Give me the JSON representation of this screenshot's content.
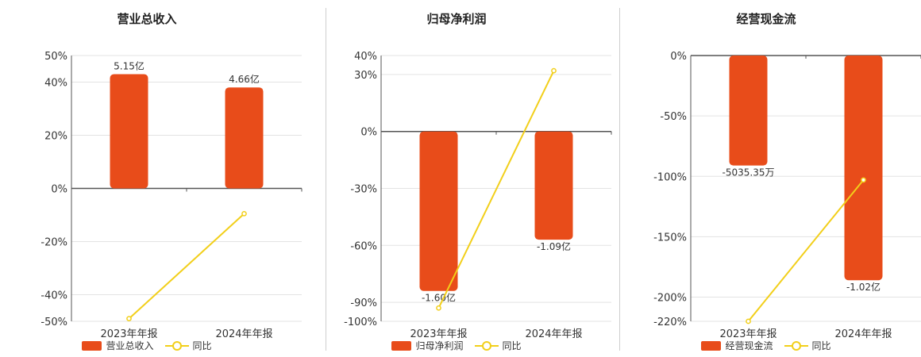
{
  "colors": {
    "bar": "#e84c1a",
    "line": "#f2cf1a",
    "grid": "#e3e3e3",
    "axis": "#555555"
  },
  "chart_data": [
    {
      "type": "bar",
      "title": "营业总收入",
      "categories": [
        "2023年年报",
        "2024年年报"
      ],
      "series": [
        {
          "name": "营业总收入",
          "type": "bar",
          "values": [
            0.43,
            0.38
          ],
          "value_labels": [
            "5.15亿",
            "4.66亿"
          ]
        },
        {
          "name": "同比",
          "type": "line",
          "values": [
            -0.49,
            -0.095
          ]
        }
      ],
      "yticks": [
        0.5,
        0.4,
        0.2,
        0,
        -0.2,
        -0.4,
        -0.5
      ],
      "ytick_labels": [
        "50%",
        "40%",
        "20%",
        "0%",
        "-20%",
        "-40%",
        "-50%"
      ],
      "ylim": [
        -0.5,
        0.5
      ],
      "legend": "bottom"
    },
    {
      "type": "bar",
      "title": "归母净利润",
      "categories": [
        "2023年年报",
        "2024年年报"
      ],
      "series": [
        {
          "name": "归母净利润",
          "type": "bar",
          "values": [
            -0.84,
            -0.57
          ],
          "value_labels": [
            "-1.60亿",
            "-1.09亿"
          ]
        },
        {
          "name": "同比",
          "type": "line",
          "values": [
            -0.93,
            0.32
          ]
        }
      ],
      "yticks": [
        0.4,
        0.3,
        0,
        -0.3,
        -0.6,
        -0.9,
        -1.0
      ],
      "ytick_labels": [
        "40%",
        "30%",
        "0%",
        "-30%",
        "-60%",
        "-90%",
        "-100%"
      ],
      "ylim": [
        -1.0,
        0.4
      ],
      "legend": "bottom"
    },
    {
      "type": "bar",
      "title": "经营现金流",
      "categories": [
        "2023年年报",
        "2024年年报"
      ],
      "series": [
        {
          "name": "经营现金流",
          "type": "bar",
          "values": [
            -0.91,
            -1.86
          ],
          "value_labels": [
            "-5035.35万",
            "-1.02亿"
          ]
        },
        {
          "name": "同比",
          "type": "line",
          "values": [
            -2.2,
            -1.03
          ]
        }
      ],
      "yticks": [
        0,
        -0.5,
        -1.0,
        -1.5,
        -2.0,
        -2.2
      ],
      "ytick_labels": [
        "0%",
        "-50%",
        "-100%",
        "-150%",
        "-200%",
        "-220%"
      ],
      "ylim": [
        -2.2,
        0
      ],
      "legend": "bottom"
    }
  ]
}
